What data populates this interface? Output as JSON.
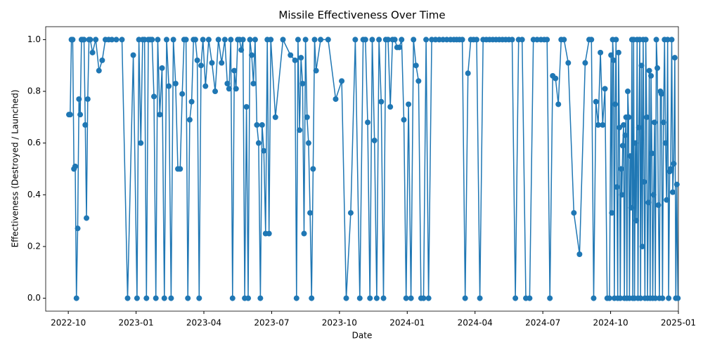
{
  "chart_data": {
    "type": "line",
    "title": "Missile Effectiveness Over Time",
    "x_label": "Date",
    "y_label": "Effectiveness (Destroyed / Launched)",
    "color": "#1f77b4",
    "xlim": [
      "2022-09",
      "2025-01"
    ],
    "xticks": [
      "2022-10",
      "2023-01",
      "2023-04",
      "2023-07",
      "2023-10",
      "2024-01",
      "2024-04",
      "2024-07",
      "2024-10",
      "2025-01"
    ],
    "ylim": [
      -0.05,
      1.05
    ],
    "yticks": [
      {
        "value": 0,
        "label": "0.0"
      },
      {
        "value": 0.2,
        "label": "0.2"
      },
      {
        "value": 0.4,
        "label": "0.4"
      },
      {
        "value": 0.6,
        "label": "0.6"
      },
      {
        "value": 0.8,
        "label": "0.8"
      },
      {
        "value": 1,
        "label": "1.0"
      }
    ],
    "x": [
      "2022-10",
      "2022-10",
      "2022-10",
      "2022-10",
      "2022-10",
      "2022-10",
      "2022-10",
      "2022-10",
      "2022-10",
      "2022-10",
      "2022-10",
      "2022-10",
      "2022-10",
      "2022-10",
      "2022-10",
      "2022-10",
      "2022-10",
      "2022-10",
      "2022-11",
      "2022-11",
      "2022-11",
      "2022-11",
      "2022-11",
      "2022-11",
      "2022-11",
      "2022-12",
      "2022-12",
      "2022-12",
      "2022-12",
      "2023-01",
      "2023-01",
      "2023-01",
      "2023-01",
      "2023-01",
      "2023-01",
      "2023-01",
      "2023-01",
      "2023-01",
      "2023-01",
      "2023-01",
      "2023-01",
      "2023-02",
      "2023-02",
      "2023-02",
      "2023-02",
      "2023-02",
      "2023-02",
      "2023-02",
      "2023-02",
      "2023-02",
      "2023-02",
      "2023-03",
      "2023-03",
      "2023-03",
      "2023-03",
      "2023-03",
      "2023-03",
      "2023-03",
      "2023-03",
      "2023-03",
      "2023-03",
      "2023-03",
      "2023-03",
      "2023-04",
      "2023-04",
      "2023-04",
      "2023-04",
      "2023-04",
      "2023-04",
      "2023-04",
      "2023-05",
      "2023-05",
      "2023-05",
      "2023-05",
      "2023-05",
      "2023-05",
      "2023-05",
      "2023-05",
      "2023-05",
      "2023-05",
      "2023-05",
      "2023-05",
      "2023-05",
      "2023-06",
      "2023-06",
      "2023-06",
      "2023-06",
      "2023-06",
      "2023-06",
      "2023-06",
      "2023-06",
      "2023-06",
      "2023-06",
      "2023-06",
      "2023-06",
      "2023-06",
      "2023-07",
      "2023-07",
      "2023-07",
      "2023-08",
      "2023-08",
      "2023-08",
      "2023-08",
      "2023-08",
      "2023-08",
      "2023-08",
      "2023-08",
      "2023-08",
      "2023-08",
      "2023-08",
      "2023-08",
      "2023-08",
      "2023-08",
      "2023-08",
      "2023-09",
      "2023-09",
      "2023-09",
      "2023-10",
      "2023-10",
      "2023-10",
      "2023-10",
      "2023-10",
      "2023-11",
      "2023-11",
      "2023-11",
      "2023-11",
      "2023-11",
      "2023-11",
      "2023-11",
      "2023-11",
      "2023-11",
      "2023-11",
      "2023-12",
      "2023-12",
      "2023-12",
      "2023-12",
      "2023-12",
      "2023-12",
      "2023-12",
      "2023-12",
      "2023-12",
      "2023-12",
      "2024-01",
      "2024-01",
      "2024-01",
      "2024-01",
      "2024-01",
      "2024-01",
      "2024-01",
      "2024-01",
      "2024-01",
      "2024-02",
      "2024-02",
      "2024-02",
      "2024-02",
      "2024-02",
      "2024-02",
      "2024-03",
      "2024-03",
      "2024-03",
      "2024-03",
      "2024-03",
      "2024-03",
      "2024-03",
      "2024-03",
      "2024-04",
      "2024-04",
      "2024-04",
      "2024-04",
      "2024-04",
      "2024-04",
      "2024-04",
      "2024-05",
      "2024-05",
      "2024-05",
      "2024-05",
      "2024-05",
      "2024-05",
      "2024-05",
      "2024-06",
      "2024-06",
      "2024-06",
      "2024-06",
      "2024-06",
      "2024-06",
      "2024-07",
      "2024-07",
      "2024-07",
      "2024-07",
      "2024-07",
      "2024-07",
      "2024-07",
      "2024-07",
      "2024-08",
      "2024-08",
      "2024-08",
      "2024-08",
      "2024-09",
      "2024-09",
      "2024-09",
      "2024-09",
      "2024-09",
      "2024-09",
      "2024-09",
      "2024-09",
      "2024-09",
      "2024-09",
      "2024-10",
      "2024-10",
      "2024-10",
      "2024-10",
      "2024-10",
      "2024-10",
      "2024-10",
      "2024-10",
      "2024-10",
      "2024-10",
      "2024-10",
      "2024-10",
      "2024-10",
      "2024-10",
      "2024-10",
      "2024-10",
      "2024-10",
      "2024-10",
      "2024-10",
      "2024-10",
      "2024-10",
      "2024-10",
      "2024-10",
      "2024-10",
      "2024-10",
      "2024-10",
      "2024-10",
      "2024-11",
      "2024-11",
      "2024-11",
      "2024-11",
      "2024-11",
      "2024-11",
      "2024-11",
      "2024-11",
      "2024-11",
      "2024-11",
      "2024-11",
      "2024-11",
      "2024-11",
      "2024-11",
      "2024-11",
      "2024-11",
      "2024-11",
      "2024-11",
      "2024-11",
      "2024-11",
      "2024-11",
      "2024-11",
      "2024-11",
      "2024-11",
      "2024-11",
      "2024-11",
      "2024-12",
      "2024-12",
      "2024-12",
      "2024-12",
      "2024-12",
      "2024-12",
      "2024-12",
      "2024-12",
      "2024-12",
      "2024-12",
      "2024-12",
      "2024-12",
      "2024-12",
      "2024-12",
      "2024-12",
      "2024-12",
      "2024-12",
      "2024-12",
      "2024-12",
      "2024-12",
      "2024-12",
      "2024-12"
    ],
    "values": [
      0.71,
      0.71,
      1,
      1,
      0.5,
      0.51,
      0,
      0.27,
      0.77,
      0.71,
      1,
      1,
      1,
      0.67,
      0.31,
      0.77,
      1,
      1,
      0.95,
      1,
      0.88,
      0.92,
      1,
      1,
      1,
      1,
      1,
      0,
      0.94,
      0,
      1,
      0.6,
      1,
      1,
      0,
      1,
      1,
      1,
      0.78,
      0,
      1,
      0.71,
      0.89,
      0,
      1,
      0.82,
      0,
      1,
      0.83,
      0.5,
      0.5,
      0.79,
      1,
      1,
      0,
      0.69,
      0.76,
      1,
      1,
      0.92,
      0,
      0.9,
      1,
      0.82,
      1,
      0.91,
      0.8,
      1,
      0.91,
      1,
      0.83,
      0.81,
      1,
      0,
      0.88,
      0.81,
      1,
      1,
      0.96,
      1,
      0,
      0.74,
      0,
      1,
      0.94,
      0.83,
      1,
      0.67,
      0.6,
      0,
      0.67,
      0.57,
      0.25,
      1,
      0.25,
      1,
      0.7,
      1,
      0.94,
      0.92,
      0,
      1,
      0.65,
      0.93,
      0.83,
      0.25,
      1,
      0.7,
      0.6,
      0.33,
      0,
      0.5,
      1,
      0.88,
      1,
      1,
      0.77,
      0.84,
      0,
      0.33,
      1,
      0,
      1,
      1,
      0.68,
      0,
      1,
      0.61,
      0,
      1,
      0.76,
      0,
      1,
      1,
      0.74,
      1,
      1,
      0.97,
      0.97,
      1,
      0.69,
      0,
      0.75,
      0,
      1,
      0.9,
      0.84,
      0,
      0,
      1,
      0,
      1,
      1,
      1,
      1,
      1,
      1,
      1,
      1,
      1,
      1,
      0,
      0.87,
      1,
      1,
      1,
      0,
      1,
      1,
      1,
      1,
      1,
      1,
      1,
      1,
      1,
      1,
      0,
      1,
      1,
      0,
      0,
      1,
      1,
      1,
      1,
      1,
      0,
      0.86,
      0.85,
      0.75,
      1,
      1,
      0.91,
      0.33,
      0.17,
      0.91,
      1,
      1,
      0,
      0.76,
      0.67,
      0.95,
      0.67,
      0.81,
      0,
      0,
      0.94,
      0.33,
      1,
      0.92,
      0,
      0.75,
      1,
      0.43,
      0,
      0.95,
      0.66,
      0,
      0.5,
      0.4,
      0.59,
      0.67,
      0,
      0.63,
      0.7,
      0,
      0.8,
      0.7,
      0,
      0.55,
      0.35,
      1,
      0,
      1,
      0,
      0.6,
      0.3,
      1,
      0,
      0.66,
      1,
      0,
      0.9,
      0.2,
      1,
      0.45,
      0,
      1,
      0.7,
      0,
      0.37,
      0.88,
      0,
      0.86,
      0.56,
      0,
      0.4,
      0.68,
      0,
      1,
      0.89,
      0.36,
      0,
      0.8,
      0.79,
      0,
      0.68,
      1,
      0.6,
      0.38,
      1,
      0,
      0.49,
      0.5,
      1,
      0.41,
      0.52,
      0.93,
      0,
      0.44,
      0
    ]
  }
}
